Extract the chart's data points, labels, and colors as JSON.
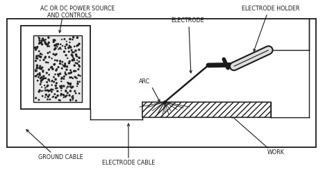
{
  "fig_width": 4.68,
  "fig_height": 2.53,
  "dpi": 100,
  "bg_color": "#ffffff",
  "line_color": "#1a1a1a",
  "labels": {
    "power_source_line1": "AC OR DC POWER SOURCE",
    "power_source_line2": "AND CONTROLS",
    "electrode_holder": "ELECTRODE HOLDER",
    "electrode": "ELECTRODE",
    "arc": "ARC",
    "ground_cable": "GROUND CABLE",
    "electrode_cable": "ELECTRODE CABLE",
    "work": "WORK"
  },
  "font_size": 5.8
}
